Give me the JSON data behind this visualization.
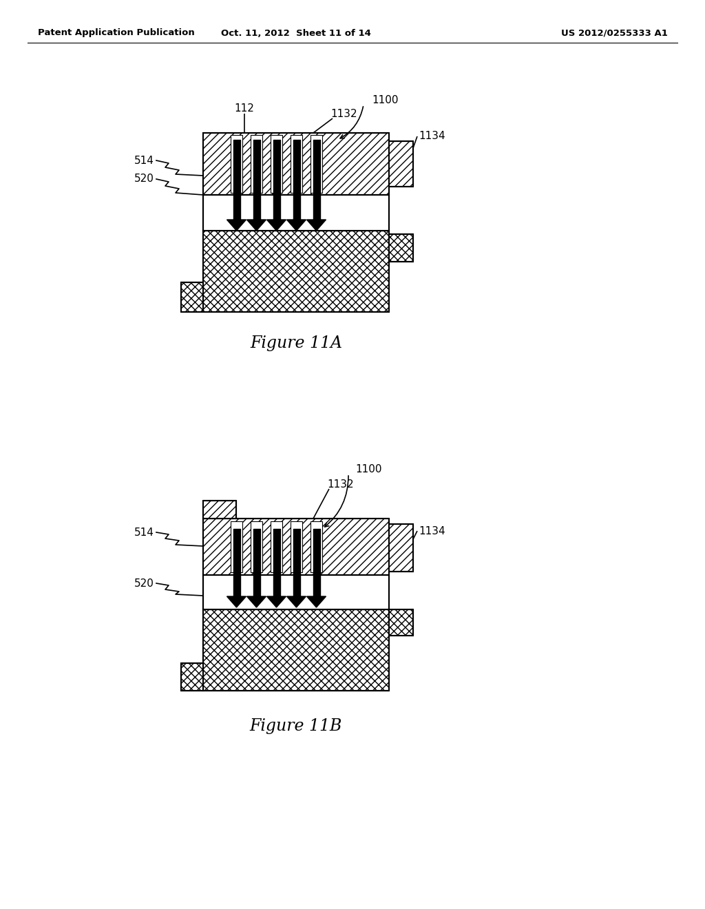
{
  "bg_color": "#ffffff",
  "header_left": "Patent Application Publication",
  "header_mid": "Oct. 11, 2012  Sheet 11 of 14",
  "header_right": "US 2012/0255333 A1",
  "fig11A_caption": "Figure 11A",
  "fig11B_caption": "Figure 11B"
}
